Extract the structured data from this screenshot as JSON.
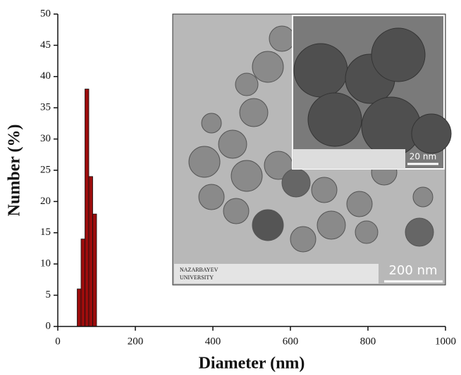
{
  "chart_data": {
    "type": "histogram",
    "xlabel": "Diameter (nm)",
    "ylabel": "Number (%)",
    "bins": [
      50,
      60,
      70,
      80,
      90,
      100
    ],
    "values": [
      6,
      14,
      38,
      24,
      18
    ],
    "color": "#9b0c0c",
    "xlim": [
      0,
      1000
    ],
    "xticks": [
      0,
      200,
      400,
      600,
      800,
      1000
    ],
    "ylim": [
      0,
      50
    ],
    "yticks": [
      0,
      5,
      10,
      15,
      20,
      25,
      30,
      35,
      40,
      45,
      50
    ]
  },
  "inset_image": {
    "scale_bar": "200 nm",
    "inner_scale_bar": "20 nm",
    "logo_line1": "NAZARBAYEV",
    "logo_line2": "UNIVERSITY"
  }
}
